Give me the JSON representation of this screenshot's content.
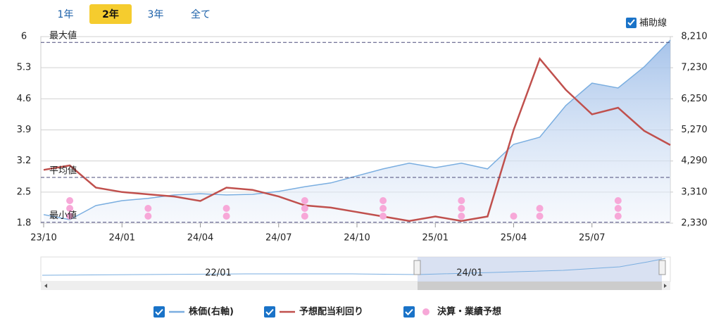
{
  "range_buttons": [
    "1年",
    "2年",
    "3年",
    "全て"
  ],
  "active_button": 1,
  "guide_toggle": "補助線",
  "chart_data": {
    "type": "line",
    "x": [
      "23/10",
      "23/11",
      "23/12",
      "24/01",
      "24/02",
      "24/03",
      "24/04",
      "24/05",
      "24/06",
      "24/07",
      "24/08",
      "24/09",
      "24/10",
      "24/11",
      "24/12",
      "25/01",
      "25/02",
      "25/03",
      "25/04",
      "25/05",
      "25/06",
      "25/07",
      "25/08",
      "25/09",
      "25/10"
    ],
    "xticks": [
      "23/10",
      "24/01",
      "24/04",
      "24/07",
      "24/10",
      "25/01",
      "25/04",
      "25/07"
    ],
    "ylim": [
      1.8,
      6
    ],
    "yticks": [
      1.8,
      2.5,
      3.2,
      3.9,
      4.6,
      5.3,
      6
    ],
    "y2lim": [
      2330,
      8210
    ],
    "y2ticks": [
      {
        "value": 2330,
        "label": "2,330"
      },
      {
        "value": 3310,
        "label": "3,310"
      },
      {
        "value": 4290,
        "label": "4,290"
      },
      {
        "value": 5270,
        "label": "5,270"
      },
      {
        "value": 6250,
        "label": "6,250"
      },
      {
        "value": 7230,
        "label": "7,230"
      },
      {
        "value": 8210,
        "label": "8,210"
      }
    ],
    "grid": true,
    "series": [
      {
        "name": "株価(右軸)",
        "color": "#7aaee0",
        "axis": "y2",
        "area": true,
        "values": [
          2600,
          2440,
          2885,
          3040,
          3110,
          3220,
          3260,
          3220,
          3240,
          3330,
          3480,
          3600,
          3820,
          4040,
          4220,
          4080,
          4220,
          4040,
          4815,
          5040,
          6040,
          6745,
          6590,
          7255,
          8100
        ]
      },
      {
        "name": "予想配当利回り",
        "color": "#c0504d",
        "values": [
          3.0,
          3.1,
          2.6,
          2.5,
          2.45,
          2.4,
          2.3,
          2.6,
          2.55,
          2.4,
          2.2,
          2.15,
          2.05,
          1.95,
          1.85,
          1.95,
          1.85,
          1.95,
          3.9,
          5.5,
          4.8,
          4.25,
          4.4,
          3.88,
          3.56
        ]
      }
    ],
    "events": {
      "name": "決算・業績予想",
      "color": "#f7a8d8",
      "x": [
        "23/11",
        "24/02",
        "24/05",
        "24/08",
        "24/11",
        "25/02",
        "25/04",
        "25/05",
        "25/08"
      ],
      "counts": [
        3,
        2,
        2,
        3,
        3,
        3,
        1,
        2,
        3
      ]
    },
    "reference_lines": [
      {
        "label": "最大値",
        "value": 5.87
      },
      {
        "label": "平均値",
        "value": 2.83
      },
      {
        "label": "最小値",
        "value": 1.82
      }
    ],
    "navigator_labels": [
      "22/01",
      "24/01"
    ]
  }
}
